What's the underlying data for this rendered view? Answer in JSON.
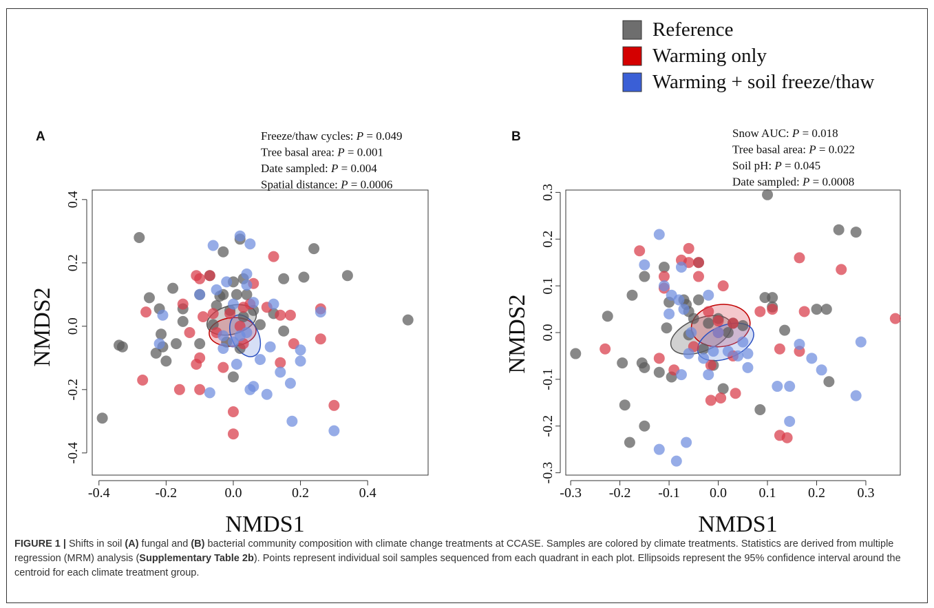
{
  "legend": {
    "items": [
      {
        "label": "Reference",
        "color": "#6e6e6e"
      },
      {
        "label": "Warming only",
        "color": "#d40000"
      },
      {
        "label": "Warming + soil freeze/thaw",
        "color": "#3a5fd6"
      }
    ]
  },
  "colors": {
    "ref_point": "#5a5a5a",
    "warm_point": "#d83a48",
    "wft_point": "#6d8cde"
  },
  "caption": {
    "fig_label": "FIGURE 1 |",
    "t1": " Shifts in soil ",
    "a": "(A)",
    "t2": " fungal and ",
    "b": "(B)",
    "t3": " bacterial community composition with climate change treatments at CCASE. Samples are colored by climate treatments. Statistics are derived from multiple regression (MRM) analysis (",
    "supp": "Supplementary Table 2b",
    "t4": "). Points represent individual soil samples sequenced from each quadrant in each plot. Ellipsoids represent the 95% confidence interval around the centroid for each climate treatment group."
  },
  "chart_data": [
    {
      "type": "scatter",
      "panel": "A",
      "xlabel": "NMDS1",
      "ylabel": "NMDS2",
      "xlim": [
        -0.42,
        0.58
      ],
      "ylim": [
        -0.47,
        0.43
      ],
      "xticks": [
        -0.4,
        -0.2,
        0.0,
        0.2,
        0.4
      ],
      "xtick_labels": [
        "-0.4",
        "-0.2",
        "0.0",
        "0.2",
        "0.4"
      ],
      "yticks": [
        -0.4,
        -0.2,
        0.0,
        0.2,
        0.4
      ],
      "ytick_labels": [
        "-0.4",
        "-0.2",
        "0.0",
        "0.2",
        "0.4"
      ],
      "stats": [
        {
          "name": "Freeze/thaw cycles: ",
          "p": "P",
          "val": " = 0.049"
        },
        {
          "name": "Tree basal area: ",
          "p": "P",
          "val": " = 0.001"
        },
        {
          "name": "Date sampled: ",
          "p": "P",
          "val": " = 0.004"
        },
        {
          "name": "Spatial distance: ",
          "p": "P",
          "val": " = 0.0006"
        }
      ],
      "series": [
        {
          "name": "Reference",
          "points": [
            [
              -0.28,
              0.28
            ],
            [
              -0.39,
              -0.29
            ],
            [
              -0.34,
              -0.06
            ],
            [
              -0.33,
              -0.065
            ],
            [
              -0.25,
              0.09
            ],
            [
              -0.23,
              -0.085
            ],
            [
              -0.22,
              0.055
            ],
            [
              -0.215,
              -0.025
            ],
            [
              -0.21,
              -0.065
            ],
            [
              -0.2,
              -0.11
            ],
            [
              -0.18,
              0.12
            ],
            [
              -0.17,
              -0.055
            ],
            [
              -0.15,
              0.055
            ],
            [
              -0.15,
              0.015
            ],
            [
              -0.1,
              0.1
            ],
            [
              -0.1,
              -0.055
            ],
            [
              -0.07,
              0.16
            ],
            [
              -0.06,
              0.005
            ],
            [
              -0.05,
              0.065
            ],
            [
              -0.04,
              0.095
            ],
            [
              -0.03,
              0.1
            ],
            [
              -0.03,
              0.235
            ],
            [
              -0.01,
              0.05
            ],
            [
              0.0,
              0.14
            ],
            [
              0.01,
              0.1
            ],
            [
              0.02,
              0.275
            ],
            [
              0.03,
              0.15
            ],
            [
              0.04,
              0.1
            ],
            [
              0.06,
              0.05
            ],
            [
              0.08,
              0.005
            ],
            [
              0.12,
              0.04
            ],
            [
              0.15,
              0.15
            ],
            [
              0.15,
              -0.015
            ],
            [
              0.21,
              0.155
            ],
            [
              0.24,
              0.245
            ],
            [
              0.34,
              0.16
            ],
            [
              0.52,
              0.02
            ],
            [
              0.0,
              -0.16
            ],
            [
              0.02,
              -0.07
            ],
            [
              0.03,
              0.03
            ],
            [
              -0.02,
              -0.05
            ]
          ]
        },
        {
          "name": "Warming only",
          "points": [
            [
              -0.27,
              -0.17
            ],
            [
              -0.26,
              0.045
            ],
            [
              -0.16,
              -0.2
            ],
            [
              -0.15,
              0.07
            ],
            [
              -0.13,
              -0.02
            ],
            [
              -0.11,
              0.16
            ],
            [
              -0.11,
              -0.12
            ],
            [
              -0.1,
              -0.2
            ],
            [
              -0.1,
              0.15
            ],
            [
              -0.1,
              -0.1
            ],
            [
              -0.09,
              0.03
            ],
            [
              -0.07,
              0.16
            ],
            [
              -0.06,
              0.04
            ],
            [
              -0.05,
              -0.02
            ],
            [
              -0.03,
              -0.13
            ],
            [
              -0.01,
              0.04
            ],
            [
              0.0,
              -0.27
            ],
            [
              0.0,
              -0.34
            ],
            [
              0.02,
              0.0
            ],
            [
              0.03,
              -0.055
            ],
            [
              0.05,
              0.07
            ],
            [
              0.06,
              0.135
            ],
            [
              0.1,
              0.06
            ],
            [
              0.12,
              0.22
            ],
            [
              0.14,
              0.035
            ],
            [
              0.14,
              -0.115
            ],
            [
              0.17,
              0.035
            ],
            [
              0.18,
              -0.055
            ],
            [
              0.26,
              0.055
            ],
            [
              0.26,
              -0.04
            ],
            [
              0.3,
              -0.25
            ],
            [
              0.03,
              0.06
            ]
          ]
        },
        {
          "name": "Warming + soil freeze/thaw",
          "points": [
            [
              -0.21,
              0.035
            ],
            [
              -0.22,
              -0.055
            ],
            [
              -0.1,
              0.1
            ],
            [
              -0.07,
              -0.21
            ],
            [
              -0.06,
              0.255
            ],
            [
              -0.05,
              0.115
            ],
            [
              -0.03,
              -0.07
            ],
            [
              -0.02,
              0.14
            ],
            [
              0.0,
              0.07
            ],
            [
              0.0,
              -0.05
            ],
            [
              0.01,
              -0.12
            ],
            [
              0.02,
              0.285
            ],
            [
              0.04,
              0.165
            ],
            [
              0.04,
              0.13
            ],
            [
              0.05,
              0.26
            ],
            [
              0.05,
              -0.2
            ],
            [
              0.06,
              -0.19
            ],
            [
              0.06,
              0.075
            ],
            [
              0.08,
              -0.105
            ],
            [
              0.1,
              -0.215
            ],
            [
              0.11,
              -0.065
            ],
            [
              0.12,
              0.07
            ],
            [
              0.14,
              -0.145
            ],
            [
              0.17,
              -0.18
            ],
            [
              0.175,
              -0.3
            ],
            [
              0.2,
              -0.075
            ],
            [
              0.2,
              -0.11
            ],
            [
              0.26,
              0.045
            ],
            [
              0.3,
              -0.33
            ],
            [
              0.04,
              -0.02
            ],
            [
              0.02,
              -0.03
            ],
            [
              -0.03,
              -0.03
            ]
          ]
        }
      ],
      "ellipses": [
        {
          "group": "Reference",
          "cx": -0.005,
          "cy": 0.02,
          "rx": 0.075,
          "ry": 0.045,
          "angle": -15
        },
        {
          "group": "Warming only",
          "cx": -0.002,
          "cy": -0.018,
          "rx": 0.07,
          "ry": 0.045,
          "angle": -5
        },
        {
          "group": "Warming + soil freeze/thaw",
          "cx": 0.035,
          "cy": -0.03,
          "rx": 0.04,
          "ry": 0.07,
          "angle": -25
        }
      ]
    },
    {
      "type": "scatter",
      "panel": "B",
      "xlabel": "NMDS1",
      "ylabel": "NMDS2",
      "xlim": [
        -0.31,
        0.37
      ],
      "ylim": [
        -0.305,
        0.305
      ],
      "xticks": [
        -0.3,
        -0.2,
        -0.1,
        0.0,
        0.1,
        0.2,
        0.3
      ],
      "xtick_labels": [
        "-0.3",
        "-0.2",
        "-0.1",
        "0.0",
        "0.1",
        "0.2",
        "0.3"
      ],
      "yticks": [
        -0.3,
        -0.2,
        -0.1,
        0.0,
        0.1,
        0.2,
        0.3
      ],
      "ytick_labels": [
        "-0.3",
        "-0.2",
        "-0.1",
        "0.0",
        "0.1",
        "0.2",
        "0.3"
      ],
      "stats": [
        {
          "name": "Snow AUC: ",
          "p": "P",
          "val": " = 0.018"
        },
        {
          "name": "Tree basal area: ",
          "p": "P",
          "val": " = 0.022"
        },
        {
          "name": "Soil pH: ",
          "p": "P",
          "val": " = 0.045"
        },
        {
          "name": "Date sampled: ",
          "p": "P",
          "val": " = 0.0008"
        }
      ],
      "series": [
        {
          "name": "Reference",
          "points": [
            [
              -0.29,
              -0.045
            ],
            [
              -0.225,
              0.035
            ],
            [
              -0.195,
              -0.065
            ],
            [
              -0.19,
              -0.155
            ],
            [
              -0.18,
              -0.235
            ],
            [
              -0.175,
              0.08
            ],
            [
              -0.155,
              -0.065
            ],
            [
              -0.15,
              -0.075
            ],
            [
              -0.15,
              0.12
            ],
            [
              -0.15,
              -0.2
            ],
            [
              -0.12,
              -0.085
            ],
            [
              -0.11,
              0.14
            ],
            [
              -0.105,
              0.01
            ],
            [
              -0.1,
              0.065
            ],
            [
              -0.095,
              -0.095
            ],
            [
              -0.07,
              0.07
            ],
            [
              -0.065,
              0.06
            ],
            [
              -0.06,
              0.045
            ],
            [
              -0.05,
              0.03
            ],
            [
              -0.04,
              0.15
            ],
            [
              -0.04,
              0.07
            ],
            [
              -0.03,
              -0.035
            ],
            [
              -0.02,
              0.02
            ],
            [
              -0.01,
              -0.07
            ],
            [
              0.01,
              -0.12
            ],
            [
              0.02,
              0.0
            ],
            [
              0.03,
              0.02
            ],
            [
              0.05,
              0.015
            ],
            [
              0.085,
              -0.165
            ],
            [
              0.095,
              0.075
            ],
            [
              0.1,
              0.295
            ],
            [
              0.11,
              0.075
            ],
            [
              0.11,
              0.055
            ],
            [
              0.135,
              0.005
            ],
            [
              0.2,
              0.05
            ],
            [
              0.22,
              0.05
            ],
            [
              0.225,
              -0.105
            ],
            [
              0.245,
              0.22
            ],
            [
              0.28,
              0.215
            ],
            [
              0.0,
              0.03
            ],
            [
              -0.06,
              -0.005
            ]
          ]
        },
        {
          "name": "Warming only",
          "points": [
            [
              -0.23,
              -0.035
            ],
            [
              -0.16,
              0.175
            ],
            [
              -0.12,
              -0.055
            ],
            [
              -0.11,
              0.12
            ],
            [
              -0.11,
              0.095
            ],
            [
              -0.09,
              -0.08
            ],
            [
              -0.075,
              0.155
            ],
            [
              -0.06,
              0.18
            ],
            [
              -0.06,
              0.15
            ],
            [
              -0.05,
              -0.03
            ],
            [
              -0.04,
              0.15
            ],
            [
              -0.04,
              0.12
            ],
            [
              -0.02,
              0.045
            ],
            [
              -0.015,
              -0.145
            ],
            [
              -0.015,
              -0.07
            ],
            [
              0.0,
              0.025
            ],
            [
              0.005,
              -0.14
            ],
            [
              0.01,
              0.1
            ],
            [
              0.03,
              -0.05
            ],
            [
              0.035,
              -0.13
            ],
            [
              0.085,
              0.045
            ],
            [
              0.11,
              0.05
            ],
            [
              0.125,
              -0.035
            ],
            [
              0.125,
              -0.22
            ],
            [
              0.14,
              -0.225
            ],
            [
              0.165,
              0.16
            ],
            [
              0.165,
              -0.04
            ],
            [
              0.175,
              0.045
            ],
            [
              0.25,
              0.135
            ],
            [
              0.36,
              0.03
            ],
            [
              0.0,
              0.0
            ],
            [
              0.03,
              0.02
            ]
          ]
        },
        {
          "name": "Warming + soil freeze/thaw",
          "points": [
            [
              -0.15,
              0.145
            ],
            [
              -0.12,
              0.21
            ],
            [
              -0.12,
              -0.25
            ],
            [
              -0.11,
              0.1
            ],
            [
              -0.1,
              0.04
            ],
            [
              -0.095,
              0.08
            ],
            [
              -0.085,
              -0.275
            ],
            [
              -0.08,
              0.07
            ],
            [
              -0.075,
              -0.09
            ],
            [
              -0.075,
              0.14
            ],
            [
              -0.07,
              0.05
            ],
            [
              -0.065,
              -0.235
            ],
            [
              -0.06,
              -0.045
            ],
            [
              -0.055,
              0.0
            ],
            [
              -0.03,
              -0.055
            ],
            [
              -0.02,
              0.08
            ],
            [
              -0.02,
              -0.09
            ],
            [
              -0.01,
              -0.04
            ],
            [
              0.0,
              0.0
            ],
            [
              0.02,
              -0.04
            ],
            [
              0.05,
              -0.02
            ],
            [
              0.06,
              -0.075
            ],
            [
              0.06,
              -0.045
            ],
            [
              0.12,
              -0.115
            ],
            [
              0.145,
              -0.115
            ],
            [
              0.145,
              -0.19
            ],
            [
              0.165,
              -0.025
            ],
            [
              0.19,
              -0.055
            ],
            [
              0.21,
              -0.08
            ],
            [
              0.28,
              -0.135
            ],
            [
              0.29,
              -0.02
            ],
            [
              0.04,
              -0.05
            ]
          ]
        }
      ],
      "ellipses": [
        {
          "group": "Reference",
          "cx": -0.035,
          "cy": -0.005,
          "rx": 0.065,
          "ry": 0.035,
          "angle": -22
        },
        {
          "group": "Warming only",
          "cx": 0.005,
          "cy": 0.015,
          "rx": 0.06,
          "ry": 0.045,
          "angle": -8
        },
        {
          "group": "Warming + soil freeze/thaw",
          "cx": 0.015,
          "cy": -0.02,
          "rx": 0.06,
          "ry": 0.035,
          "angle": -22
        }
      ]
    }
  ]
}
